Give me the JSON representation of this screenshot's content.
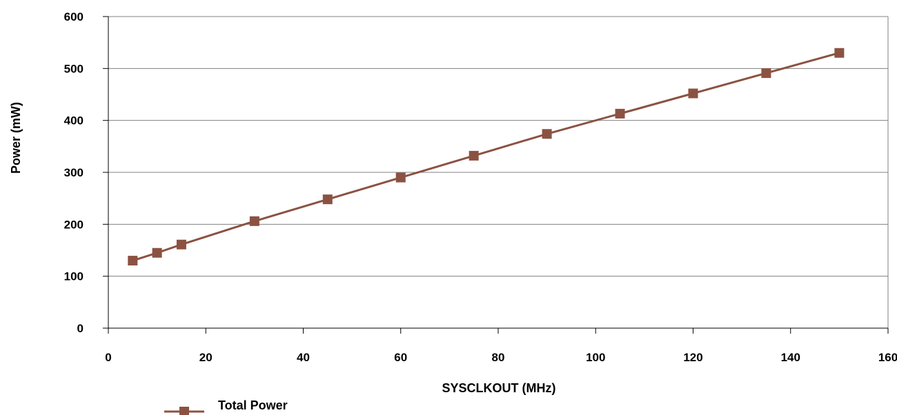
{
  "chart_data": {
    "type": "line",
    "xlabel": "SYSCLKOUT (MHz)",
    "ylabel": "Power (mW)",
    "xlim": [
      0,
      160
    ],
    "ylim": [
      0,
      600
    ],
    "xticks": [
      0,
      20,
      40,
      60,
      80,
      100,
      120,
      140,
      160
    ],
    "yticks": [
      0,
      100,
      200,
      300,
      400,
      500,
      600
    ],
    "grid": "horizontal",
    "legend_position": "bottom-left",
    "series": [
      {
        "name": "Total Power",
        "color": "#8B5242",
        "marker": "square",
        "x": [
          5,
          10,
          15,
          30,
          45,
          60,
          75,
          90,
          105,
          120,
          135,
          150
        ],
        "y": [
          130,
          145,
          161,
          206,
          248,
          290,
          332,
          374,
          413,
          452,
          491,
          530
        ]
      }
    ]
  }
}
